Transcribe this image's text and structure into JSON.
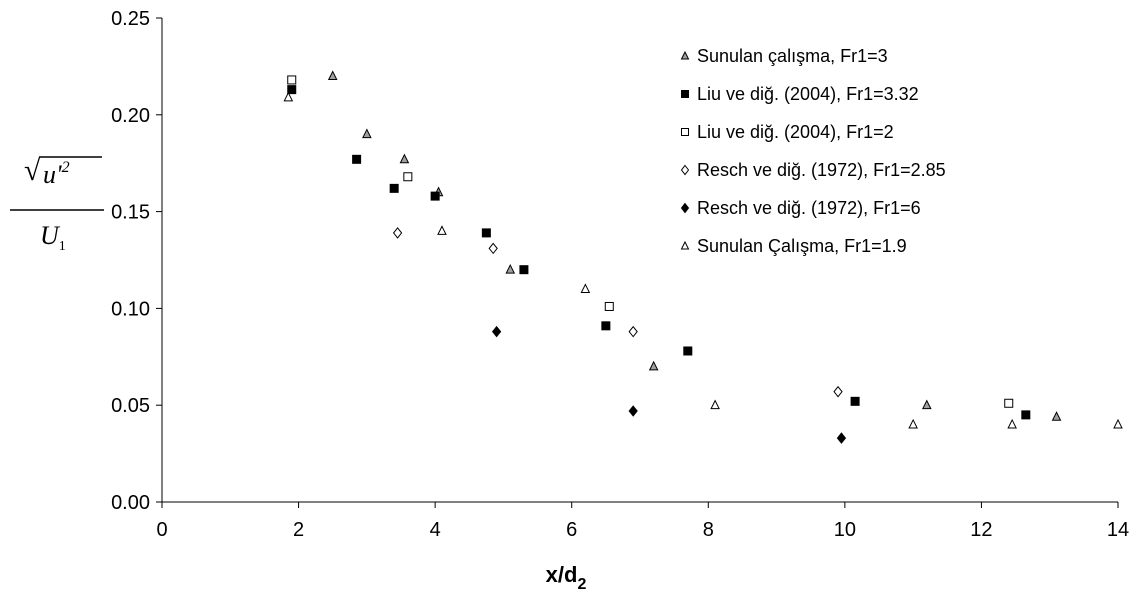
{
  "chart_data": {
    "type": "scatter",
    "xlabel": "x/d",
    "xlabel_sub": "2",
    "ylabel": {
      "numerator": "u'",
      "numerator_exp": "2",
      "denominator": "U",
      "denominator_sub": "1"
    },
    "xlim": [
      0,
      14
    ],
    "ylim": [
      0,
      0.25
    ],
    "x_ticks": [
      "0",
      "2",
      "4",
      "6",
      "8",
      "10",
      "12",
      "14"
    ],
    "y_ticks": [
      "0.00",
      "0.05",
      "0.10",
      "0.15",
      "0.20",
      "0.25"
    ],
    "grid": false,
    "legend_position": "top-right",
    "series": [
      {
        "name": "Sunulan çalışma, Fr1=3",
        "marker": "triangle",
        "fill": "#a0a0a0",
        "points": [
          [
            2.5,
            0.22
          ],
          [
            3.0,
            0.19
          ],
          [
            3.55,
            0.177
          ],
          [
            4.05,
            0.16
          ],
          [
            5.1,
            0.12
          ],
          [
            7.2,
            0.07
          ],
          [
            11.2,
            0.05
          ],
          [
            13.1,
            0.044
          ]
        ]
      },
      {
        "name": "Liu ve diğ. (2004), Fr1=3.32",
        "marker": "square",
        "fill": "#000000",
        "points": [
          [
            1.9,
            0.213
          ],
          [
            2.85,
            0.177
          ],
          [
            3.4,
            0.162
          ],
          [
            4.0,
            0.158
          ],
          [
            4.75,
            0.139
          ],
          [
            5.3,
            0.12
          ],
          [
            6.5,
            0.091
          ],
          [
            7.7,
            0.078
          ],
          [
            10.15,
            0.052
          ],
          [
            12.65,
            0.045
          ]
        ]
      },
      {
        "name": "Liu ve diğ. (2004), Fr1=2",
        "marker": "square",
        "fill": "#ffffff",
        "points": [
          [
            1.9,
            0.218
          ],
          [
            3.6,
            0.168
          ],
          [
            6.55,
            0.101
          ],
          [
            12.4,
            0.051
          ]
        ]
      },
      {
        "name": "Resch ve diğ. (1972), Fr1=2.85",
        "marker": "diamond",
        "fill": "#ffffff",
        "points": [
          [
            3.45,
            0.139
          ],
          [
            4.85,
            0.131
          ],
          [
            6.9,
            0.088
          ],
          [
            9.9,
            0.057
          ]
        ]
      },
      {
        "name": "Resch ve diğ. (1972), Fr1=6",
        "marker": "diamond",
        "fill": "#000000",
        "points": [
          [
            4.9,
            0.088
          ],
          [
            6.9,
            0.047
          ],
          [
            9.95,
            0.033
          ]
        ]
      },
      {
        "name": "Sunulan Çalışma, Fr1=1.9",
        "marker": "triangle",
        "fill": "#ffffff",
        "points": [
          [
            1.85,
            0.209
          ],
          [
            4.1,
            0.14
          ],
          [
            6.2,
            0.11
          ],
          [
            8.1,
            0.05
          ],
          [
            11.0,
            0.04
          ],
          [
            12.45,
            0.04
          ],
          [
            14.0,
            0.04
          ]
        ]
      }
    ]
  }
}
